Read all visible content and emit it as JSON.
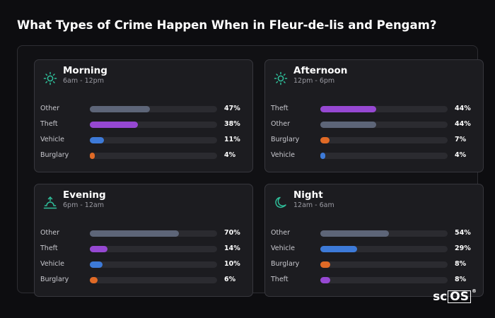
{
  "title": "What Types of Crime Happen When in Fleur-de-lis and Pengam?",
  "logo": {
    "main": "sc",
    "boxed": "OS",
    "mark": "®"
  },
  "colors": {
    "Other": "#5d6578",
    "Theft": "#9648d2",
    "Vehicle": "#3d7ad8",
    "Burglary": "#e06a26",
    "icon": "#2fbf9a"
  },
  "chart_data": [
    {
      "type": "bar",
      "title": "Morning",
      "subtitle": "6am - 12pm",
      "icon": "sun-icon",
      "categories": [
        "Other",
        "Theft",
        "Vehicle",
        "Burglary"
      ],
      "values": [
        47,
        38,
        11,
        4
      ],
      "value_labels": [
        "47%",
        "38%",
        "11%",
        "4%"
      ],
      "xlim": [
        0,
        100
      ]
    },
    {
      "type": "bar",
      "title": "Afternoon",
      "subtitle": "12pm - 6pm",
      "icon": "sun-icon",
      "categories": [
        "Theft",
        "Other",
        "Burglary",
        "Vehicle"
      ],
      "values": [
        44,
        44,
        7,
        4
      ],
      "value_labels": [
        "44%",
        "44%",
        "7%",
        "4%"
      ],
      "xlim": [
        0,
        100
      ]
    },
    {
      "type": "bar",
      "title": "Evening",
      "subtitle": "6pm - 12am",
      "icon": "sunset-icon",
      "categories": [
        "Other",
        "Theft",
        "Vehicle",
        "Burglary"
      ],
      "values": [
        70,
        14,
        10,
        6
      ],
      "value_labels": [
        "70%",
        "14%",
        "10%",
        "6%"
      ],
      "xlim": [
        0,
        100
      ]
    },
    {
      "type": "bar",
      "title": "Night",
      "subtitle": "12am - 6am",
      "icon": "moon-icon",
      "categories": [
        "Other",
        "Vehicle",
        "Burglary",
        "Theft"
      ],
      "values": [
        54,
        29,
        8,
        8
      ],
      "value_labels": [
        "54%",
        "29%",
        "8%",
        "8%"
      ],
      "xlim": [
        0,
        100
      ]
    }
  ]
}
